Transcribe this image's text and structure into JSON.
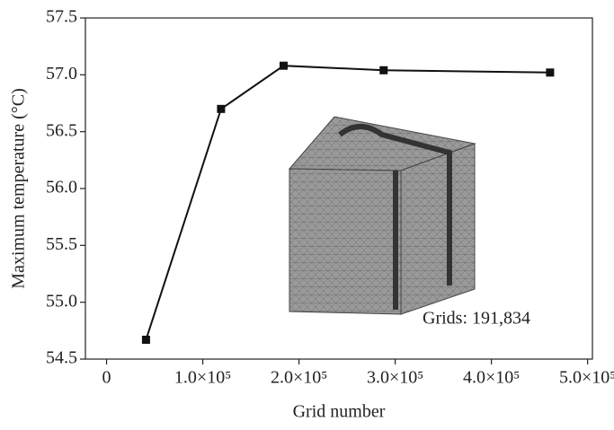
{
  "chart_data": {
    "type": "line",
    "x_label": "Grid number",
    "y_label": "Maximum temperature (°C)",
    "annotation": "Grids: 191,834",
    "x": [
      41000,
      119000,
      184000,
      288000,
      461000
    ],
    "series": [
      {
        "color": "#111111",
        "values": [
          54.67,
          56.7,
          57.08,
          57.04,
          57.02
        ]
      }
    ],
    "xlim": [
      -22000,
      505000
    ],
    "xticks": [
      0,
      {
        "value": 100000,
        "label": "1.0×10⁵"
      },
      {
        "value": 200000,
        "label": "2.0×10⁵"
      },
      {
        "value": 300000,
        "label": "3.0×10⁵"
      },
      {
        "value": 400000,
        "label": "4.0×10⁵"
      },
      {
        "value": 500000,
        "label": "5.0×10⁵"
      }
    ],
    "ylim": [
      54.5,
      57.5
    ],
    "yticks": [
      {
        "value": 54.5,
        "label": "54.5"
      },
      {
        "value": 55,
        "label": "55.0"
      },
      {
        "value": 55.5,
        "label": "55.5"
      },
      {
        "value": 56,
        "label": "56.0"
      },
      {
        "value": 56.5,
        "label": "56.5"
      },
      {
        "value": 57,
        "label": "57.0"
      },
      {
        "value": 57.5,
        "label": "57.5"
      }
    ]
  }
}
